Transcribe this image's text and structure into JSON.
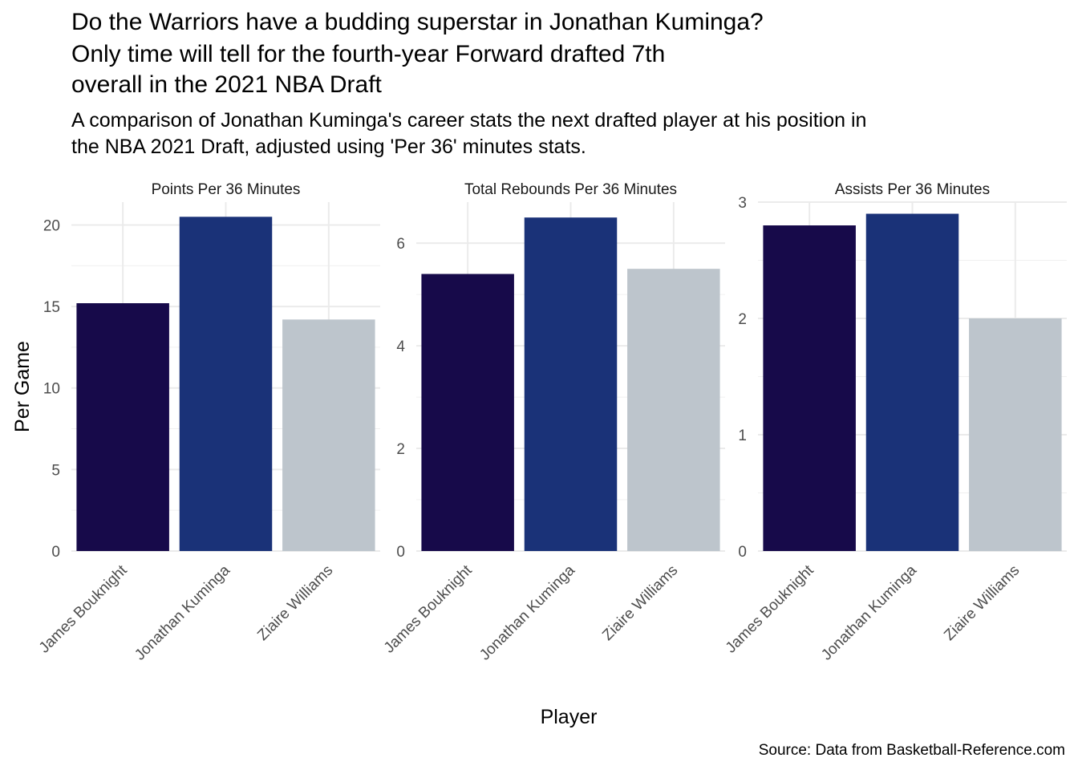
{
  "chart_data": {
    "type": "bar",
    "title": [
      "Do the Warriors have a budding superstar in Jonathan Kuminga?",
      "Only time will tell for the fourth-year Forward drafted 7th",
      "overall in the 2021 NBA Draft"
    ],
    "subtitle": [
      "A comparison of Jonathan Kuminga's career stats the next drafted player at his position in",
      "the NBA 2021 Draft, adjusted using 'Per 36' minutes stats."
    ],
    "xlabel": "Player",
    "ylabel": "Per Game",
    "caption": "Source: Data from Basketball-Reference.com",
    "categories": [
      "James Bouknight",
      "Jonathan Kuminga",
      "Ziaire Williams"
    ],
    "colors": [
      "#170a4a",
      "#1a3278",
      "#bdc5cc"
    ],
    "grid": true,
    "legend": "none",
    "panels": [
      {
        "label": "Points Per 36 Minutes",
        "values": [
          15.2,
          20.5,
          14.2
        ],
        "ylim": [
          0,
          21.4
        ],
        "ticks": [
          0,
          5,
          10,
          15,
          20
        ],
        "tick_labels": [
          "0",
          "5",
          "10",
          "15",
          "20"
        ]
      },
      {
        "label": "Total Rebounds Per 36 Minutes",
        "values": [
          5.4,
          6.5,
          5.5
        ],
        "ylim": [
          0,
          6.8
        ],
        "ticks": [
          0,
          2,
          4,
          6
        ],
        "tick_labels": [
          "0",
          "2",
          "4",
          "6"
        ]
      },
      {
        "label": "Assists Per 36 Minutes",
        "values": [
          2.8,
          2.9,
          2.0
        ],
        "ylim": [
          0,
          3.0
        ],
        "ticks": [
          0,
          1,
          2,
          3
        ],
        "tick_labels": [
          "0",
          "1",
          "2",
          "3"
        ]
      }
    ]
  }
}
